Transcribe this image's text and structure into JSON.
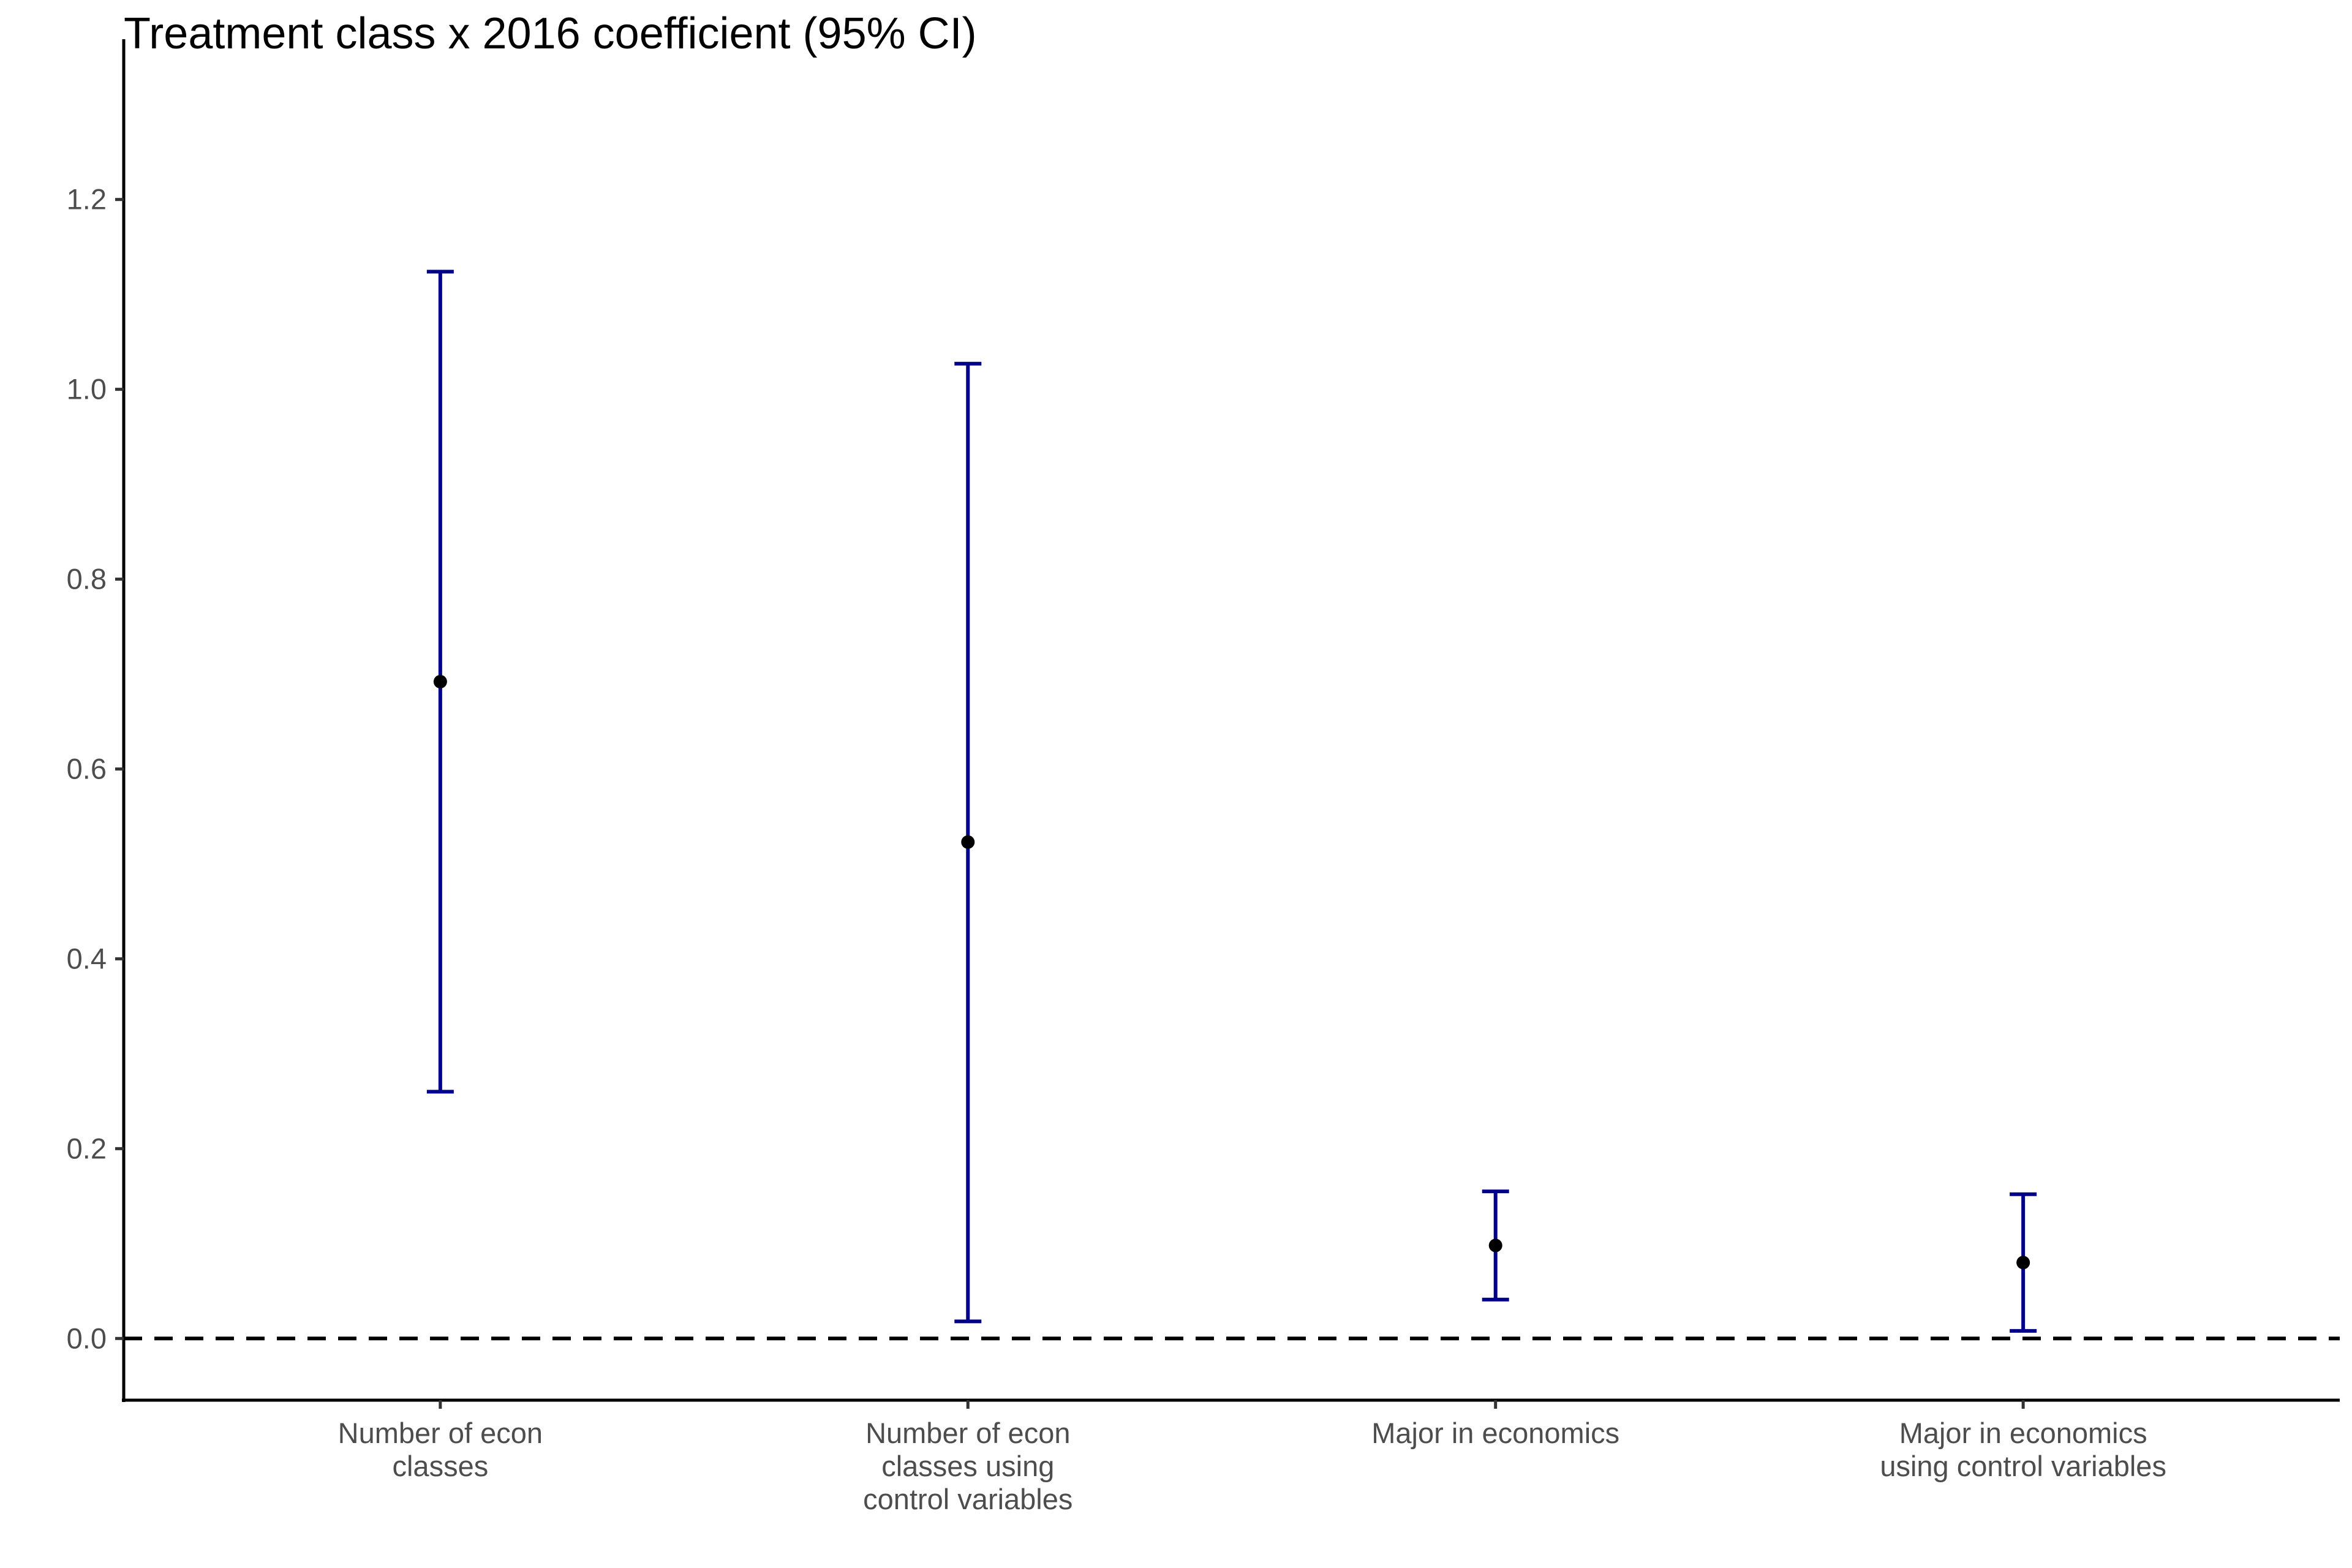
{
  "chart_data": {
    "type": "errorbar",
    "title": "Treatment class x 2016 coefficient (95% CI)",
    "xlabel": "",
    "ylabel": "",
    "ylim": [
      -0.065,
      1.365
    ],
    "y_ticks": [
      "0.0",
      "0.2",
      "0.4",
      "0.6",
      "0.8",
      "1.0",
      "1.2"
    ],
    "y_tick_values": [
      0.0,
      0.2,
      0.4,
      0.6,
      0.8,
      1.0,
      1.2
    ],
    "reference_line": {
      "y": 0.0,
      "style": "dashed",
      "color": "#000000"
    },
    "grid": false,
    "legend": "none",
    "colors": {
      "errorbar": "#00008b",
      "point": "#000000",
      "axis": "#000000",
      "tick_text": "#4d4d4d"
    },
    "categories": [
      "Number of econ\nclasses",
      "Number of econ\nclasses using\ncontrol variables",
      "Major in economics",
      "Major in economics\nusing control variables"
    ],
    "estimates": [
      0.692,
      0.523,
      0.098,
      0.08
    ],
    "ci_lower": [
      0.26,
      0.018,
      0.041,
      0.008
    ],
    "ci_upper": [
      1.124,
      1.027,
      0.155,
      0.152
    ]
  }
}
